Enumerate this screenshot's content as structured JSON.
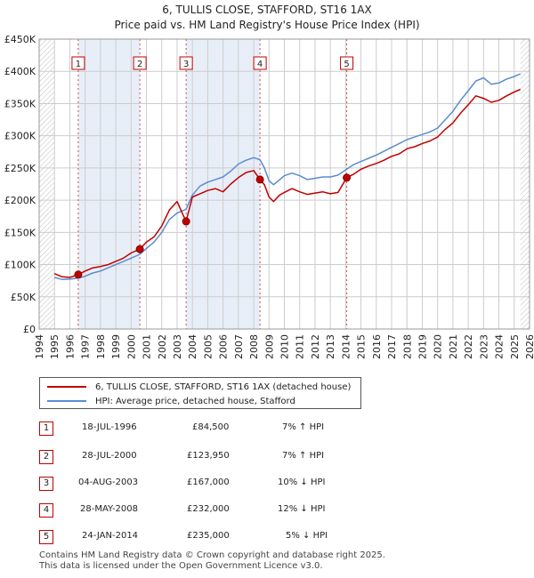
{
  "title": "6, TULLIS CLOSE, STAFFORD, ST16 1AX",
  "subtitle": "Price paid vs. HM Land Registry's House Price Index (HPI)",
  "colors": {
    "red": "#c00000",
    "blue": "#5b8ccf",
    "shade": "#e8eef8",
    "grid": "#cccccc"
  },
  "chart_data": {
    "type": "line",
    "title": "6, TULLIS CLOSE, STAFFORD, ST16 1AX",
    "subtitle": "Price paid vs. HM Land Registry's House Price Index (HPI)",
    "xlim": [
      1994,
      2026
    ],
    "ylim": [
      0,
      450000
    ],
    "x_ticks": [
      1994,
      1995,
      1996,
      1997,
      1998,
      1999,
      2000,
      2001,
      2002,
      2003,
      2004,
      2005,
      2006,
      2007,
      2008,
      2009,
      2010,
      2011,
      2012,
      2013,
      2014,
      2015,
      2016,
      2017,
      2018,
      2019,
      2020,
      2021,
      2022,
      2023,
      2024,
      2025,
      2026
    ],
    "y_ticks": [
      {
        "value": 0,
        "label": "£0"
      },
      {
        "value": 50000,
        "label": "£50K"
      },
      {
        "value": 100000,
        "label": "£100K"
      },
      {
        "value": 150000,
        "label": "£150K"
      },
      {
        "value": 200000,
        "label": "£200K"
      },
      {
        "value": 250000,
        "label": "£250K"
      },
      {
        "value": 300000,
        "label": "£300K"
      },
      {
        "value": 350000,
        "label": "£350K"
      },
      {
        "value": 400000,
        "label": "£400K"
      },
      {
        "value": 450000,
        "label": "£450K"
      }
    ],
    "data_range": [
      1995.0,
      2025.4
    ],
    "grid": true,
    "series": [
      {
        "name": "6, TULLIS CLOSE, STAFFORD, ST16 1AX (detached house)",
        "color": "#c00000",
        "points": [
          [
            1995.0,
            86000
          ],
          [
            1995.5,
            81000
          ],
          [
            1996.0,
            80000
          ],
          [
            1996.55,
            84500
          ],
          [
            1997.0,
            90000
          ],
          [
            1997.5,
            95000
          ],
          [
            1998.0,
            97000
          ],
          [
            1998.5,
            100000
          ],
          [
            1999.0,
            105000
          ],
          [
            1999.5,
            110000
          ],
          [
            2000.0,
            118000
          ],
          [
            2000.57,
            123950
          ],
          [
            2001.0,
            135000
          ],
          [
            2001.5,
            143000
          ],
          [
            2002.0,
            160000
          ],
          [
            2002.5,
            185000
          ],
          [
            2003.0,
            198000
          ],
          [
            2003.3,
            182000
          ],
          [
            2003.59,
            167000
          ],
          [
            2004.0,
            205000
          ],
          [
            2004.5,
            210000
          ],
          [
            2005.0,
            215000
          ],
          [
            2005.5,
            218000
          ],
          [
            2006.0,
            213000
          ],
          [
            2006.5,
            225000
          ],
          [
            2007.0,
            235000
          ],
          [
            2007.5,
            243000
          ],
          [
            2008.0,
            246000
          ],
          [
            2008.41,
            232000
          ],
          [
            2008.7,
            224000
          ],
          [
            2009.0,
            205000
          ],
          [
            2009.3,
            198000
          ],
          [
            2009.7,
            208000
          ],
          [
            2010.0,
            212000
          ],
          [
            2010.5,
            218000
          ],
          [
            2011.0,
            213000
          ],
          [
            2011.5,
            209000
          ],
          [
            2012.0,
            211000
          ],
          [
            2012.5,
            213000
          ],
          [
            2013.0,
            210000
          ],
          [
            2013.5,
            212000
          ],
          [
            2014.07,
            235000
          ],
          [
            2014.5,
            240000
          ],
          [
            2015.0,
            248000
          ],
          [
            2015.5,
            253000
          ],
          [
            2016.0,
            257000
          ],
          [
            2016.5,
            262000
          ],
          [
            2017.0,
            268000
          ],
          [
            2017.5,
            272000
          ],
          [
            2018.0,
            280000
          ],
          [
            2018.5,
            283000
          ],
          [
            2019.0,
            288000
          ],
          [
            2019.5,
            292000
          ],
          [
            2020.0,
            298000
          ],
          [
            2020.5,
            310000
          ],
          [
            2021.0,
            320000
          ],
          [
            2021.5,
            335000
          ],
          [
            2022.0,
            348000
          ],
          [
            2022.5,
            362000
          ],
          [
            2023.0,
            358000
          ],
          [
            2023.5,
            352000
          ],
          [
            2024.0,
            355000
          ],
          [
            2024.5,
            362000
          ],
          [
            2025.0,
            368000
          ],
          [
            2025.4,
            372000
          ]
        ]
      },
      {
        "name": "HPI: Average price, detached house, Stafford",
        "color": "#5b8ccf",
        "points": [
          [
            1995.0,
            80000
          ],
          [
            1995.5,
            77000
          ],
          [
            1996.0,
            77500
          ],
          [
            1996.55,
            79000
          ],
          [
            1997.0,
            82000
          ],
          [
            1997.5,
            87000
          ],
          [
            1998.0,
            90000
          ],
          [
            1998.5,
            95000
          ],
          [
            1999.0,
            100000
          ],
          [
            1999.5,
            105000
          ],
          [
            2000.0,
            110000
          ],
          [
            2000.57,
            116000
          ],
          [
            2001.0,
            125000
          ],
          [
            2001.5,
            135000
          ],
          [
            2002.0,
            150000
          ],
          [
            2002.5,
            170000
          ],
          [
            2003.0,
            180000
          ],
          [
            2003.59,
            186000
          ],
          [
            2004.0,
            208000
          ],
          [
            2004.5,
            222000
          ],
          [
            2005.0,
            228000
          ],
          [
            2005.5,
            232000
          ],
          [
            2006.0,
            236000
          ],
          [
            2006.5,
            245000
          ],
          [
            2007.0,
            256000
          ],
          [
            2007.5,
            262000
          ],
          [
            2008.0,
            266000
          ],
          [
            2008.41,
            263000
          ],
          [
            2008.7,
            250000
          ],
          [
            2009.0,
            230000
          ],
          [
            2009.3,
            224000
          ],
          [
            2009.7,
            232000
          ],
          [
            2010.0,
            238000
          ],
          [
            2010.5,
            242000
          ],
          [
            2011.0,
            238000
          ],
          [
            2011.5,
            232000
          ],
          [
            2012.0,
            234000
          ],
          [
            2012.5,
            236000
          ],
          [
            2013.0,
            236000
          ],
          [
            2013.5,
            239000
          ],
          [
            2014.07,
            248000
          ],
          [
            2014.5,
            255000
          ],
          [
            2015.0,
            260000
          ],
          [
            2015.5,
            265000
          ],
          [
            2016.0,
            270000
          ],
          [
            2016.5,
            276000
          ],
          [
            2017.0,
            282000
          ],
          [
            2017.5,
            288000
          ],
          [
            2018.0,
            294000
          ],
          [
            2018.5,
            298000
          ],
          [
            2019.0,
            302000
          ],
          [
            2019.5,
            306000
          ],
          [
            2020.0,
            312000
          ],
          [
            2020.5,
            325000
          ],
          [
            2021.0,
            338000
          ],
          [
            2021.5,
            355000
          ],
          [
            2022.0,
            370000
          ],
          [
            2022.5,
            385000
          ],
          [
            2023.0,
            390000
          ],
          [
            2023.5,
            380000
          ],
          [
            2024.0,
            382000
          ],
          [
            2024.5,
            388000
          ],
          [
            2025.0,
            392000
          ],
          [
            2025.4,
            396000
          ]
        ]
      }
    ],
    "sales": [
      {
        "label": "1",
        "x": 1996.55,
        "price": 84500
      },
      {
        "label": "2",
        "x": 2000.57,
        "price": 123950
      },
      {
        "label": "3",
        "x": 2003.59,
        "price": 167000
      },
      {
        "label": "4",
        "x": 2008.41,
        "price": 232000
      },
      {
        "label": "5",
        "x": 2014.07,
        "price": 235000
      }
    ]
  },
  "legend": {
    "property": "6, TULLIS CLOSE, STAFFORD, ST16 1AX (detached house)",
    "hpi": "HPI: Average price, detached house, Stafford"
  },
  "table": [
    {
      "num": "1",
      "date": "18-JUL-1996",
      "price": "£84,500",
      "hpi": "7% ↑ HPI"
    },
    {
      "num": "2",
      "date": "28-JUL-2000",
      "price": "£123,950",
      "hpi": "7% ↑ HPI"
    },
    {
      "num": "3",
      "date": "04-AUG-2003",
      "price": "£167,000",
      "hpi": "10% ↓ HPI"
    },
    {
      "num": "4",
      "date": "28-MAY-2008",
      "price": "£232,000",
      "hpi": "12% ↓ HPI"
    },
    {
      "num": "5",
      "date": "24-JAN-2014",
      "price": "£235,000",
      "hpi": "5% ↓ HPI"
    }
  ],
  "footer": {
    "line1": "Contains HM Land Registry data © Crown copyright and database right 2025.",
    "line2": "This data is licensed under the Open Government Licence v3.0."
  }
}
